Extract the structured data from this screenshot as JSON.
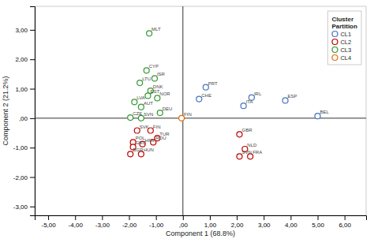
{
  "chart_data": {
    "type": "scatter",
    "xlabel": "Component 1 (68.8%)",
    "ylabel": "Component 2 (21.2%)",
    "xlim": [
      -5.5,
      6.8
    ],
    "ylim": [
      -3.3,
      3.8
    ],
    "xticks": [
      {
        "value": -5,
        "label": "-5,00"
      },
      {
        "value": -4,
        "label": "-4,00"
      },
      {
        "value": -3,
        "label": "-3,00"
      },
      {
        "value": -2,
        "label": "-2,00"
      },
      {
        "value": -1,
        "label": "-1,00"
      },
      {
        "value": 0,
        "label": ",00"
      },
      {
        "value": 1,
        "label": "1,00"
      },
      {
        "value": 2,
        "label": "2,00"
      },
      {
        "value": 3,
        "label": "3,00"
      },
      {
        "value": 4,
        "label": "4,00"
      },
      {
        "value": 5,
        "label": "5,00"
      },
      {
        "value": 6,
        "label": "6,00"
      }
    ],
    "yticks": [
      {
        "value": -3,
        "label": "-3,00"
      },
      {
        "value": -2,
        "label": "-2,00"
      },
      {
        "value": -1,
        "label": "-1,00"
      },
      {
        "value": 0,
        "label": ",00"
      },
      {
        "value": 1,
        "label": "1,00"
      },
      {
        "value": 2,
        "label": "2,00"
      },
      {
        "value": 3,
        "label": "3,00"
      }
    ],
    "grid": false,
    "legend": "upper right",
    "legend_title": "Cluster\nPartition",
    "marker": "open-circle",
    "series": [
      {
        "name": "CL1",
        "color": "#4472C4",
        "labels": [
          "PRT",
          "CHE",
          "IRL",
          "ITA",
          "ESP",
          "BEL"
        ],
        "x": [
          0.85,
          0.6,
          2.55,
          2.25,
          3.8,
          5.0
        ],
        "values": [
          1.05,
          0.65,
          0.7,
          0.42,
          0.6,
          0.07
        ]
      },
      {
        "name": "CL2",
        "color": "#C00000",
        "labels": [
          "SVK",
          "FIN",
          "POL",
          "HRV",
          "ROU",
          "GRC",
          "BGR",
          "HUN",
          "TUR",
          "GBR",
          "NLD",
          "SVN",
          "FRA"
        ],
        "x": [
          -1.7,
          -1.2,
          -1.85,
          -1.5,
          -1.1,
          -1.85,
          -1.95,
          -1.55,
          -0.95,
          2.1,
          2.3,
          2.1,
          2.5
        ],
        "values": [
          -0.42,
          -0.42,
          -0.82,
          -0.88,
          -0.82,
          -0.98,
          -1.22,
          -1.22,
          -0.68,
          -0.55,
          -1.05,
          -1.3,
          -1.3
        ]
      },
      {
        "name": "CL3",
        "color": "#339933",
        "labels": [
          "MLT",
          "CYP",
          "ISR",
          "LTU",
          "DNK",
          "EST",
          "NOR",
          "LVA",
          "AUT",
          "DEU",
          "CZE",
          "SVN"
        ],
        "x": [
          -1.25,
          -1.35,
          -1.05,
          -1.6,
          -1.2,
          -1.3,
          -0.95,
          -1.8,
          -1.55,
          -0.85,
          -1.95,
          -1.55
        ],
        "values": [
          2.88,
          1.62,
          1.35,
          1.2,
          0.93,
          0.76,
          0.68,
          0.55,
          0.38,
          0.18,
          0.02,
          0.0
        ]
      },
      {
        "name": "CL4",
        "color": "#E36C09",
        "labels": [
          "FIN"
        ],
        "x": [
          -0.05
        ],
        "values": [
          0.0
        ]
      }
    ]
  }
}
